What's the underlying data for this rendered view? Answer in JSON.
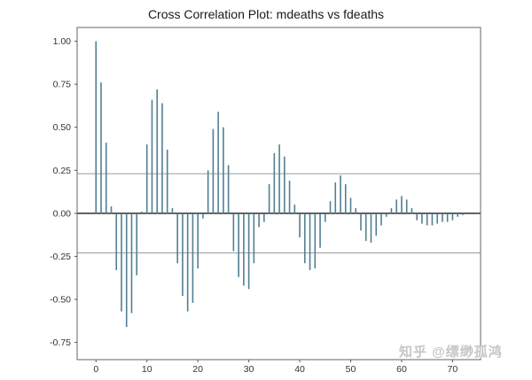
{
  "title": "Cross Correlation Plot: mdeaths vs fdeaths",
  "watermark": "知乎 @缥缈孤鸿",
  "colors": {
    "background": "#ffffff",
    "stem": "#527f93",
    "zero_line": "#1c1c1c",
    "ref_line": "#9a9a9a",
    "plot_border": "#666666",
    "tick": "#555555",
    "tick_label": "#333333",
    "title_text": "#1a1a1a",
    "watermark_text": "#c6c6c6"
  },
  "chart_data": {
    "type": "bar",
    "subtype": "stem-cross-correlation",
    "title": "Cross Correlation Plot: mdeaths vs fdeaths",
    "xlabel": "",
    "ylabel": "",
    "x": [
      0,
      1,
      2,
      3,
      4,
      5,
      6,
      7,
      8,
      9,
      10,
      11,
      12,
      13,
      14,
      15,
      16,
      17,
      18,
      19,
      20,
      21,
      22,
      23,
      24,
      25,
      26,
      27,
      28,
      29,
      30,
      31,
      32,
      33,
      34,
      35,
      36,
      37,
      38,
      39,
      40,
      41,
      42,
      43,
      44,
      45,
      46,
      47,
      48,
      49,
      50,
      51,
      52,
      53,
      54,
      55,
      56,
      57,
      58,
      59,
      60,
      61,
      62,
      63,
      64,
      65,
      66,
      67,
      68,
      69,
      70,
      71,
      72
    ],
    "values": [
      1.0,
      0.76,
      0.41,
      0.04,
      -0.33,
      -0.57,
      -0.66,
      -0.58,
      -0.36,
      0.01,
      0.4,
      0.66,
      0.72,
      0.64,
      0.37,
      0.03,
      -0.29,
      -0.48,
      -0.57,
      -0.52,
      -0.32,
      -0.03,
      0.25,
      0.49,
      0.59,
      0.5,
      0.28,
      -0.22,
      -0.37,
      -0.42,
      -0.44,
      -0.29,
      -0.08,
      -0.05,
      0.17,
      0.35,
      0.4,
      0.33,
      0.19,
      0.05,
      -0.14,
      -0.29,
      -0.33,
      -0.32,
      -0.2,
      -0.05,
      0.07,
      0.18,
      0.22,
      0.17,
      0.09,
      0.03,
      -0.1,
      -0.16,
      -0.17,
      -0.13,
      -0.07,
      -0.02,
      0.03,
      0.08,
      0.1,
      0.08,
      0.03,
      -0.04,
      -0.06,
      -0.07,
      -0.07,
      -0.06,
      -0.05,
      -0.05,
      -0.04,
      -0.02,
      -0.01
    ],
    "xticks": [
      0,
      10,
      20,
      30,
      40,
      50,
      60,
      70
    ],
    "xtick_labels": [
      "0",
      "10",
      "20",
      "30",
      "40",
      "50",
      "60",
      "70"
    ],
    "yticks": [
      1.0,
      0.75,
      0.5,
      0.25,
      0.0,
      -0.25,
      -0.5,
      -0.75
    ],
    "ytick_labels": [
      "1.00",
      "0.75",
      "0.50",
      "0.25",
      "0.00",
      "-0.25",
      "-0.50",
      "-0.75"
    ],
    "reference_lines": [
      0.23,
      -0.23
    ],
    "zero_line": 0.0,
    "xlim": [
      -3.7,
      75.5
    ],
    "ylim": [
      -0.85,
      1.08
    ],
    "grid": false,
    "legend_position": "none"
  }
}
